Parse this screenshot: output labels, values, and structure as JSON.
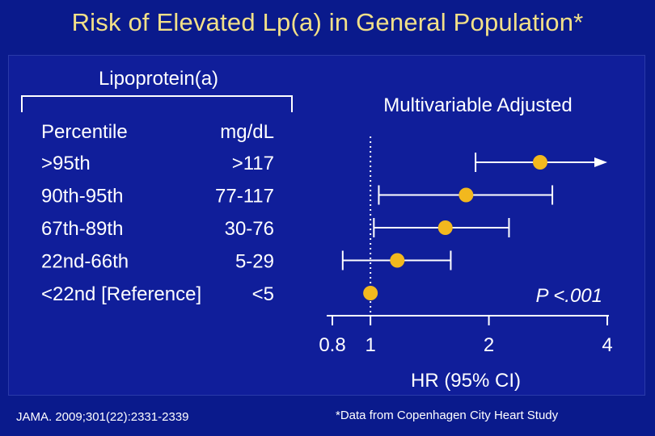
{
  "slide": {
    "title": "Risk of Elevated Lp(a) in General Population*",
    "citation": "JAMA. 2009;301(22):2331-2339",
    "footnote": "*Data from Copenhagen City Heart Study"
  },
  "chart_data": {
    "type": "scatter",
    "table_header": "Lipoprotein(a)",
    "column_headers": [
      "Percentile",
      "mg/dL"
    ],
    "panel_title": "Multivariable Adjusted",
    "xlabel": "HR (95% CI)",
    "x_scale": "log",
    "xlim": [
      0.8,
      4
    ],
    "x_ticks": [
      0.8,
      1,
      2,
      4
    ],
    "x_tick_labels": [
      "0.8",
      "1",
      "2",
      "4"
    ],
    "reference_line": 1,
    "p_value": "P <.001",
    "rows": [
      {
        "percentile": ">95th",
        "range": ">117",
        "hr": 2.7,
        "ci_low": 1.85,
        "ci_high": 4.0,
        "arrow": true
      },
      {
        "percentile": "90th-95th",
        "range": "77-117",
        "hr": 1.75,
        "ci_low": 1.05,
        "ci_high": 2.9,
        "arrow": false
      },
      {
        "percentile": "67th-89th",
        "range": "30-76",
        "hr": 1.55,
        "ci_low": 1.02,
        "ci_high": 2.25,
        "arrow": false
      },
      {
        "percentile": "22nd-66th",
        "range": "5-29",
        "hr": 1.17,
        "ci_low": 0.85,
        "ci_high": 1.6,
        "arrow": false
      },
      {
        "percentile": "<22nd [Reference]",
        "range": "<5",
        "hr": 1.0,
        "ci_low": null,
        "ci_high": null,
        "arrow": false
      }
    ],
    "colors": {
      "marker": "#f2b81e",
      "line": "#ffffff",
      "background": "#101e9a"
    }
  }
}
